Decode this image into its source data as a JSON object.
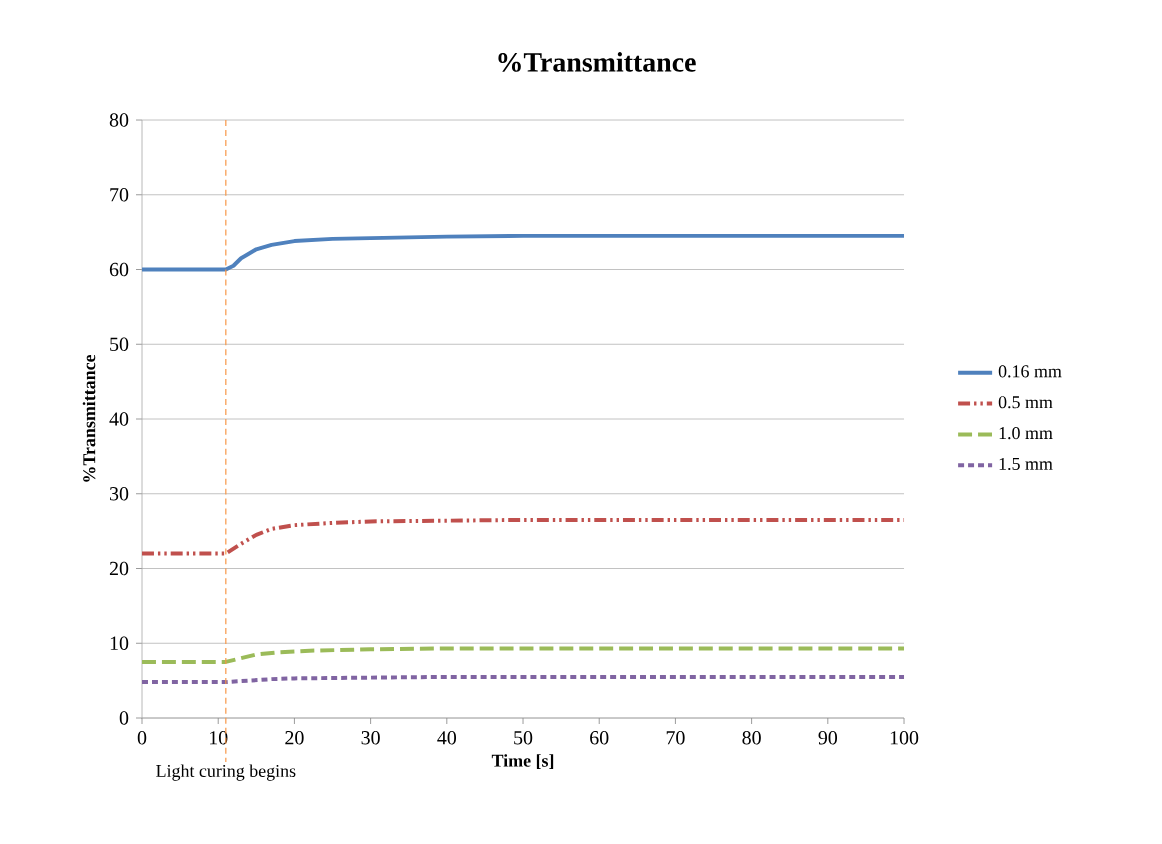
{
  "chart_data": {
    "type": "line",
    "title": "%Transmittance",
    "xlabel": "Time [s]",
    "ylabel": "%Transmittance",
    "xlim": [
      0,
      100
    ],
    "ylim": [
      0,
      80
    ],
    "xticks": [
      0,
      10,
      20,
      30,
      40,
      50,
      60,
      70,
      80,
      90,
      100
    ],
    "yticks": [
      0,
      10,
      20,
      30,
      40,
      50,
      60,
      70,
      80
    ],
    "grid": "y",
    "legend": "right",
    "marker": "none",
    "ref_lines": [
      {
        "axis": "x",
        "value": 11,
        "label": "Light curing begins",
        "color": "#f79646",
        "line_style": "dotted"
      }
    ],
    "series": [
      {
        "name": "0.16 mm",
        "color": "#4f81bd",
        "line_style": "solid",
        "x": [
          0,
          11,
          12,
          13,
          15,
          17,
          20,
          25,
          30,
          40,
          50,
          70,
          100
        ],
        "values": [
          60,
          60,
          60.5,
          61.5,
          62.7,
          63.3,
          63.8,
          64.1,
          64.2,
          64.4,
          64.5,
          64.5,
          64.5
        ]
      },
      {
        "name": "0.5 mm",
        "color": "#c0504d",
        "line_style": "dashdotdot",
        "x": [
          0,
          11,
          13,
          15,
          17,
          20,
          25,
          30,
          40,
          50,
          70,
          100
        ],
        "values": [
          22,
          22,
          23.3,
          24.5,
          25.3,
          25.8,
          26.1,
          26.3,
          26.4,
          26.5,
          26.5,
          26.5
        ]
      },
      {
        "name": "1.0 mm",
        "color": "#9bbb59",
        "line_style": "dashed",
        "x": [
          0,
          11,
          13,
          15,
          18,
          22,
          30,
          40,
          50,
          70,
          100
        ],
        "values": [
          7.5,
          7.5,
          8,
          8.5,
          8.8,
          9,
          9.2,
          9.3,
          9.3,
          9.3,
          9.3
        ]
      },
      {
        "name": "1.5 mm",
        "color": "#8064a2",
        "line_style": "dotted",
        "x": [
          0,
          11,
          14,
          17,
          20,
          30,
          40,
          50,
          70,
          100
        ],
        "values": [
          4.8,
          4.8,
          5,
          5.2,
          5.3,
          5.4,
          5.5,
          5.5,
          5.5,
          5.5
        ]
      }
    ]
  }
}
